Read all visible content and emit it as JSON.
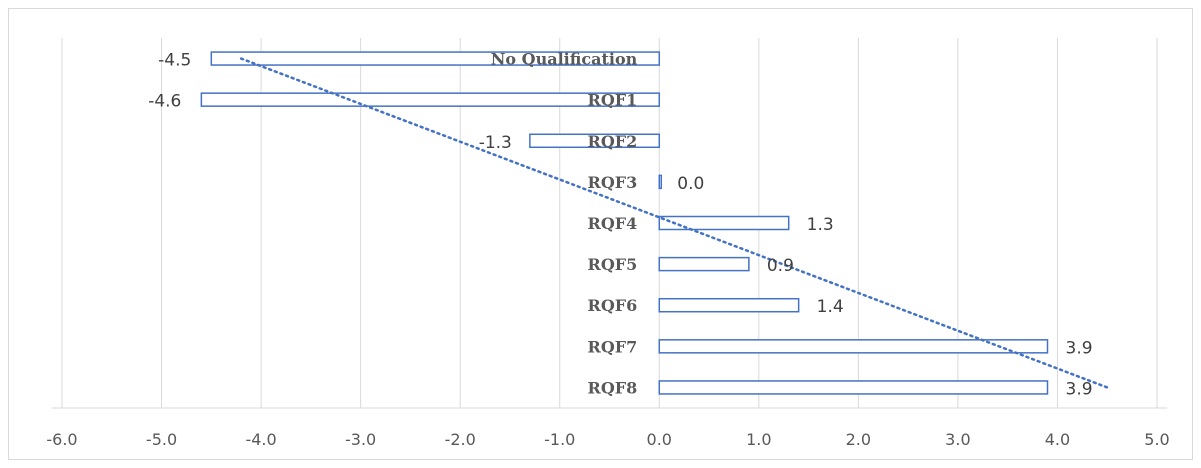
{
  "chart_data": {
    "type": "bar",
    "orientation": "horizontal",
    "categories": [
      "No Qualification",
      "RQF1",
      "RQF2",
      "RQF3",
      "RQF4",
      "RQF5",
      "RQF6",
      "RQF7",
      "RQF8"
    ],
    "values": [
      -4.5,
      -4.6,
      -1.3,
      0.0,
      1.3,
      0.9,
      1.4,
      3.9,
      3.9
    ],
    "data_labels": [
      "-4.5",
      "-4.6",
      "-1.3",
      "0.0",
      "1.3",
      "0.9",
      "1.4",
      "3.9",
      "3.9"
    ],
    "xlim": [
      -6.0,
      5.0
    ],
    "xticks": [
      "-6.0",
      "-5.0",
      "-4.0",
      "-3.0",
      "-2.0",
      "-1.0",
      "0.0",
      "1.0",
      "2.0",
      "3.0",
      "4.0",
      "5.0"
    ],
    "title": "",
    "xlabel": "",
    "ylabel": "",
    "grid": "vertical",
    "legend": "none",
    "bar_fill": "#ffffff",
    "bar_stroke": "#4472c4",
    "trendline": {
      "style": "dotted",
      "color": "#4472c4",
      "from_value": -4.2,
      "to_value": 4.5
    }
  }
}
